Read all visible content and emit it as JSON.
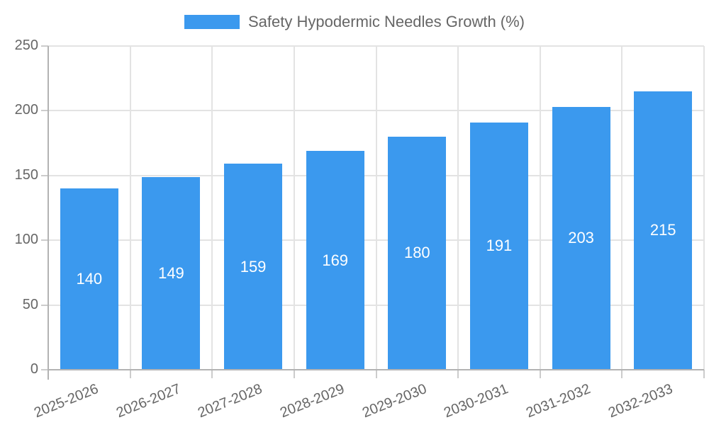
{
  "legend": {
    "label": "Safety Hypodermic Needles Growth (%)"
  },
  "chart_data": {
    "type": "bar",
    "title": "Safety Hypodermic Needles Growth (%)",
    "categories": [
      "2025-2026",
      "2026-2027",
      "2027-2028",
      "2028-2029",
      "2029-2030",
      "2030-2031",
      "2031-2032",
      "2032-2033"
    ],
    "values": [
      140,
      149,
      159,
      169,
      180,
      191,
      203,
      215
    ],
    "xlabel": "",
    "ylabel": "",
    "ylim": [
      0,
      250
    ],
    "yticks": [
      0,
      50,
      100,
      150,
      200,
      250
    ],
    "legend_position": "top",
    "grid": true,
    "value_labels_inside_bars": true,
    "colors": {
      "bar": "#3B99EE",
      "value_label": "#FFFFFF",
      "text": "#666666",
      "gridline": "#E3E3E3",
      "axis": "#B3B3B3",
      "tick": "#CCCCCC",
      "background": "#FFFFFF"
    }
  }
}
